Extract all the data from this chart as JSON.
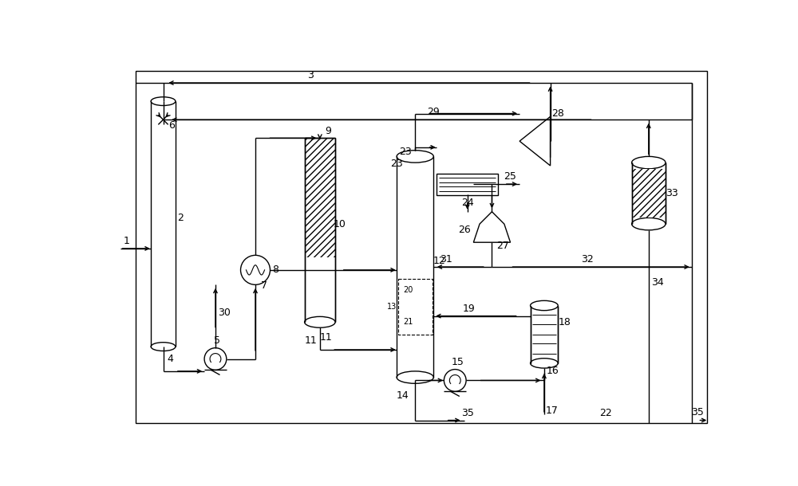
{
  "bg_color": "#ffffff",
  "line_color": "#000000",
  "figsize": [
    10.0,
    6.1
  ],
  "dpi": 100,
  "lw": 1.0
}
